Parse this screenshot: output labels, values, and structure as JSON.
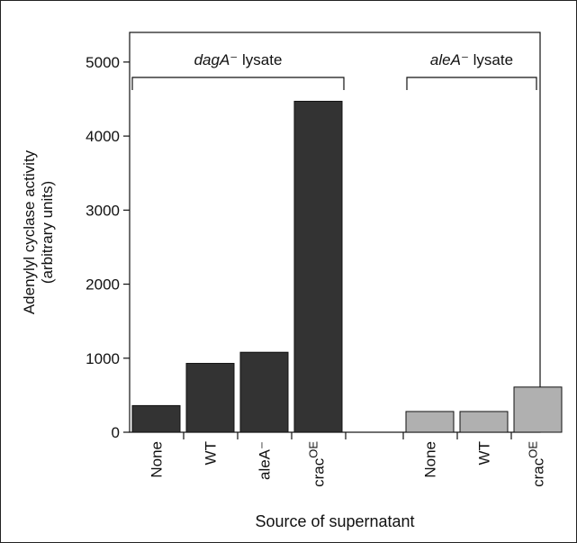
{
  "chart_data": {
    "type": "bar",
    "xlabel": "Source of supernatant",
    "ylabel_line1": "Adenylyl cyclase activity",
    "ylabel_line2": "(arbitrary units)",
    "ylim": [
      0,
      5400
    ],
    "yticks": [
      0,
      1000,
      2000,
      3000,
      4000,
      5000
    ],
    "groups": [
      {
        "name_italic": "dagA",
        "name_rest": "⁻ lysate",
        "color": "#333333",
        "categories": [
          {
            "base": "None",
            "sup": ""
          },
          {
            "base": "WT",
            "sup": ""
          },
          {
            "base": "aleA⁻",
            "sup": ""
          },
          {
            "base": "crac",
            "sup": "OE"
          }
        ],
        "values": [
          360,
          930,
          1080,
          4470
        ]
      },
      {
        "name_italic": "aleA",
        "name_rest": "⁻ lysate",
        "color": "#b0b0b0",
        "categories": [
          {
            "base": "None",
            "sup": ""
          },
          {
            "base": "WT",
            "sup": ""
          },
          {
            "base": "crac",
            "sup": "OE"
          }
        ],
        "values": [
          280,
          280,
          610
        ]
      }
    ]
  }
}
